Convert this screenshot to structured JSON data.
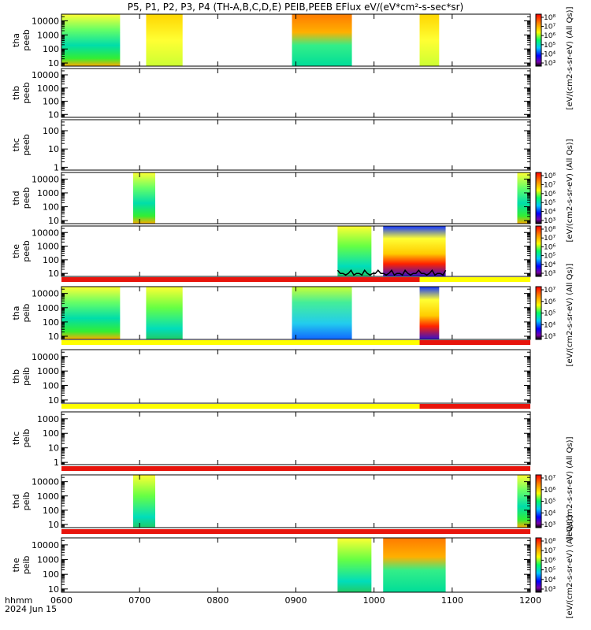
{
  "title": "P5, P1, P2, P3, P4 (TH-A,B,C,D,E) PEIB,PEEB EFlux eV/(eV*cm²-s-sec*sr)",
  "colors": {
    "axis": "#000000",
    "bar_red": "#e8140c",
    "bar_yellow": "#ffff00",
    "trace": "#000000"
  },
  "chart_data": {
    "type": "heatmap",
    "x_axis": {
      "tick_labels": [
        "0600",
        "0700",
        "0800",
        "0900",
        "1000",
        "1100",
        "1200"
      ],
      "range": [
        "0600",
        "1200"
      ],
      "footer_labels": [
        "hhmm",
        "2024 Jun 15"
      ]
    },
    "panels": [
      {
        "probe": "tha",
        "ylabel": [
          "tha",
          "peeb"
        ],
        "yticks": [
          "10",
          "100",
          "1000",
          "10000"
        ],
        "ylim": [
          6,
          30000
        ],
        "ylog": true,
        "colorbar": true,
        "cbar_ticks": [
          "10³",
          "10⁴",
          "10⁵",
          "10⁶",
          "10⁷",
          "10⁸"
        ],
        "data_intervals": [
          [
            "0600",
            "0645",
            "mixed"
          ],
          [
            "0705",
            "0733",
            "yellow"
          ],
          [
            "0857",
            "0943",
            "orange"
          ],
          [
            "1035",
            "1050",
            "yellow"
          ]
        ],
        "trace": false
      },
      {
        "probe": "thb",
        "ylabel": [
          "thb",
          "peeb"
        ],
        "yticks": [
          "10",
          "100",
          "1000",
          "10000"
        ],
        "ylim": [
          6,
          30000
        ],
        "ylog": true,
        "colorbar": false,
        "cbar_ticks": [],
        "data_intervals": [],
        "trace": false
      },
      {
        "probe": "thc",
        "ylabel": [
          "thc",
          "peeb"
        ],
        "yticks": [
          "1",
          "10",
          "100"
        ],
        "ylim": [
          0.7,
          400
        ],
        "ylog": true,
        "colorbar": false,
        "cbar_ticks": [],
        "data_intervals": [],
        "trace": false
      },
      {
        "probe": "thd",
        "ylabel": [
          "thd",
          "peeb"
        ],
        "yticks": [
          "10",
          "100",
          "1000",
          "10000"
        ],
        "ylim": [
          6,
          30000
        ],
        "ylog": true,
        "colorbar": true,
        "cbar_ticks": [
          "10³",
          "10⁴",
          "10⁵",
          "10⁶",
          "10⁷",
          "10⁸"
        ],
        "data_intervals": [
          [
            "0655",
            "0712",
            "mixed"
          ],
          [
            "1150",
            "1200",
            "mixed"
          ]
        ],
        "trace": false
      },
      {
        "probe": "the",
        "ylabel": [
          "the",
          "peeb"
        ],
        "yticks": [
          "10",
          "100",
          "1000",
          "10000"
        ],
        "ylim": [
          6,
          30000
        ],
        "ylog": true,
        "colorbar": true,
        "cbar_ticks": [
          "10³",
          "10⁴",
          "10⁵",
          "10⁶",
          "10⁷",
          "10⁸"
        ],
        "data_intervals": [
          [
            "0932",
            "0958",
            "green"
          ],
          [
            "1007",
            "1055",
            "blue"
          ]
        ],
        "trace": true
      },
      {
        "probe": "tha",
        "ylabel": [
          "tha",
          "peib"
        ],
        "yticks": [
          "10",
          "100",
          "1000",
          "10000"
        ],
        "ylim": [
          6,
          30000
        ],
        "ylog": true,
        "colorbar": true,
        "cbar_ticks": [
          "10³",
          "10⁴",
          "10⁵",
          "10⁶",
          "10⁷"
        ],
        "data_intervals": [
          [
            "0600",
            "0645",
            "mixed"
          ],
          [
            "0705",
            "0733",
            "green"
          ],
          [
            "0857",
            "0943",
            "cyan"
          ],
          [
            "1035",
            "1050",
            "blue"
          ]
        ],
        "trace": false
      },
      {
        "probe": "thb",
        "ylabel": [
          "thb",
          "peib"
        ],
        "yticks": [
          "10",
          "100",
          "1000",
          "10000"
        ],
        "ylim": [
          6,
          30000
        ],
        "ylog": true,
        "colorbar": false,
        "cbar_ticks": [],
        "data_intervals": [],
        "trace": false
      },
      {
        "probe": "thc",
        "ylabel": [
          "thc",
          "peib"
        ],
        "yticks": [
          "1",
          "10",
          "100",
          "1000"
        ],
        "ylim": [
          0.7,
          3000
        ],
        "ylog": true,
        "colorbar": false,
        "cbar_ticks": [],
        "data_intervals": [],
        "trace": false
      },
      {
        "probe": "thd",
        "ylabel": [
          "thd",
          "peib"
        ],
        "yticks": [
          "10",
          "100",
          "1000",
          "10000"
        ],
        "ylim": [
          6,
          30000
        ],
        "ylog": true,
        "colorbar": true,
        "cbar_ticks": [
          "10³",
          "10⁴",
          "10⁵",
          "10⁶",
          "10⁷"
        ],
        "data_intervals": [
          [
            "0655",
            "0712",
            "green"
          ],
          [
            "1150",
            "1200",
            "mixed"
          ]
        ],
        "trace": false
      },
      {
        "probe": "the",
        "ylabel": [
          "the",
          "peib"
        ],
        "yticks": [
          "10",
          "100",
          "1000",
          "10000"
        ],
        "ylim": [
          6,
          30000
        ],
        "ylog": true,
        "colorbar": true,
        "cbar_ticks": [
          "10³",
          "10⁴",
          "10⁵",
          "10⁶",
          "10⁷",
          "10⁸"
        ],
        "data_intervals": [
          [
            "0932",
            "0958",
            "green"
          ],
          [
            "1007",
            "1055",
            "orange"
          ]
        ],
        "trace": false
      }
    ],
    "status_bars": [
      {
        "after_panel": 4,
        "segments": [
          [
            "0600",
            "1035",
            "red"
          ],
          [
            "1035",
            "1200",
            "yellow"
          ]
        ]
      },
      {
        "after_panel": 5,
        "segments": [
          [
            "0600",
            "1035",
            "yellow"
          ],
          [
            "1035",
            "1200",
            "red"
          ]
        ]
      },
      {
        "after_panel": 6,
        "segments": [
          [
            "0600",
            "1035",
            "yellow"
          ],
          [
            "1035",
            "1200",
            "red"
          ]
        ]
      },
      {
        "after_panel": 7,
        "segments": [
          [
            "0600",
            "1200",
            "red"
          ]
        ]
      },
      {
        "after_panel": 8,
        "segments": [
          [
            "0600",
            "1200",
            "red"
          ]
        ]
      }
    ],
    "colorbar_labels": [
      "[eV/(cm2-s-sr-eV) (All Qs)]",
      "[eV/(cm2-s-sr-eV) (All Qs)]",
      "[eV/(cm2-s-sr-eV) (All Qs)]",
      "[eV/(cm2-s-sr-eV) (All Qs)]",
      "[eV/(cm2-s-sr-eV) (All Qs)]"
    ]
  }
}
